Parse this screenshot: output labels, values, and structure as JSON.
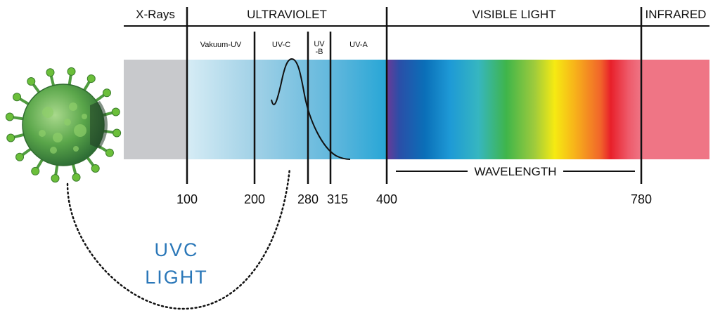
{
  "regions": {
    "xrays": "X-Rays",
    "ultraviolet": "ULTRAVIOLET",
    "visible": "VISIBLE LIGHT",
    "infrared": "INFRARED"
  },
  "uv_bands": {
    "vakuum": "Vakuum-UV",
    "uvc": "UV-C",
    "uvb_line1": "UV",
    "uvb_line2": "-B",
    "uva": "UV-A"
  },
  "wavelength_label": "WAVELENGTH",
  "ticks": [
    "100",
    "200",
    "280",
    "315",
    "400",
    "780"
  ],
  "uvc_light": {
    "line1": "UVC",
    "line2": "LIGHT"
  },
  "colors": {
    "accent": "#2a77b8",
    "xray_band": "#c8c9cc",
    "infrared_band": "#ee7a88"
  },
  "icons": {
    "virus": "coronavirus-icon"
  }
}
